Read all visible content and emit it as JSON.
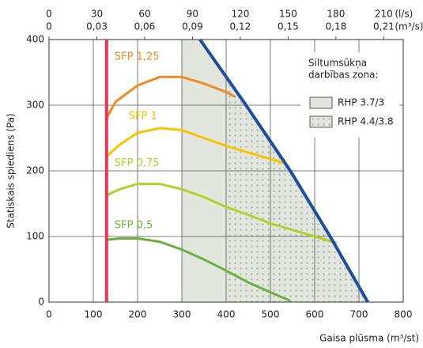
{
  "chart_data": {
    "type": "line",
    "xlabel": "Gaisa plūsma (m³/st)",
    "ylabel": "Statiskais spiediens (Pa)",
    "xlim": [
      0,
      800
    ],
    "xticks": [
      0,
      100,
      200,
      300,
      400,
      500,
      600,
      700,
      800
    ],
    "ylim": [
      0,
      400
    ],
    "yticks": [
      0,
      100,
      200,
      300,
      400
    ],
    "x2lim": [
      0,
      222.222
    ],
    "x2ticks": [
      0,
      30,
      60,
      90,
      120,
      150,
      180,
      210
    ],
    "x2unit": "(l/s)",
    "x3lim": [
      0,
      0.222222
    ],
    "x3ticks": [
      0,
      {
        "value": 0.03,
        "label": "0,03"
      },
      {
        "value": 0.06,
        "label": "0,06"
      },
      {
        "value": 0.09,
        "label": "0,09"
      },
      {
        "value": 0.12,
        "label": "0,12"
      },
      {
        "value": 0.15,
        "label": "0,15"
      },
      {
        "value": 0.18,
        "label": "0,18"
      },
      {
        "value": 0.21,
        "label": "0,21"
      }
    ],
    "x3unit": "(m³/s)",
    "grid": true,
    "min_line": {
      "x": 130,
      "color": "#e8365a"
    },
    "limit_line": {
      "color": "#1f4e9a",
      "x": [
        341,
        445,
        545,
        635,
        720
      ],
      "values": [
        400,
        300,
        200,
        100,
        0
      ]
    },
    "legend_title": [
      "Siltumsūkņa",
      "darbības zona:"
    ],
    "zones": [
      {
        "name": "RHP 3.7/3",
        "color": "#e3e5df",
        "x_from": 300
      },
      {
        "name": "RHP 4.4/3.8",
        "color": "#b9bdb5",
        "x_from": 400
      }
    ],
    "series": [
      {
        "name": "SFP 1,25",
        "color": "#f08a24",
        "x": [
          130,
          150,
          200,
          250,
          300,
          350,
          400,
          420
        ],
        "values": [
          280,
          305,
          330,
          343,
          343,
          333,
          320,
          313
        ]
      },
      {
        "name": "SFP 1",
        "color": "#f6c400",
        "x": [
          130,
          160,
          200,
          250,
          300,
          350,
          400,
          450,
          500,
          530
        ],
        "values": [
          222,
          240,
          258,
          265,
          262,
          250,
          238,
          228,
          218,
          212
        ]
      },
      {
        "name": "SFP 0,75",
        "color": "#b5cf2d",
        "x": [
          130,
          160,
          200,
          250,
          300,
          350,
          400,
          450,
          500,
          550,
          600,
          650
        ],
        "values": [
          163,
          172,
          180,
          180,
          172,
          160,
          145,
          133,
          120,
          110,
          100,
          90
        ]
      },
      {
        "name": "SFP 0,5",
        "color": "#6ab23e",
        "x": [
          130,
          160,
          200,
          250,
          300,
          350,
          400,
          450,
          500,
          545
        ],
        "values": [
          95,
          97,
          97,
          92,
          80,
          65,
          48,
          30,
          15,
          2
        ]
      }
    ]
  }
}
